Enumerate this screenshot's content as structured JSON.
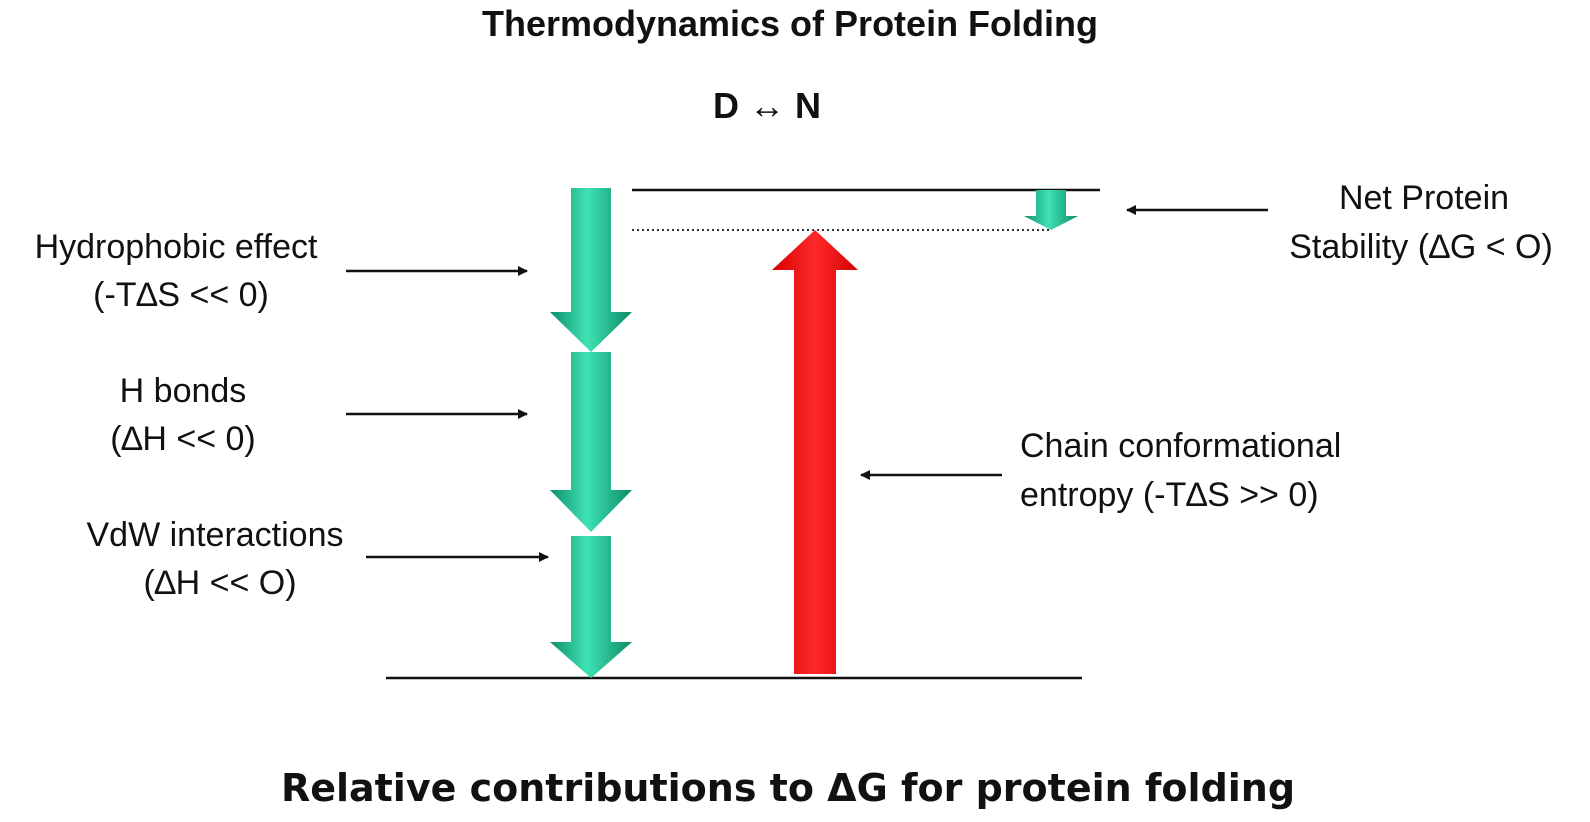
{
  "title": "Thermodynamics of Protein Folding",
  "reaction": "D ↔ N",
  "caption": "Relative contributions to ΔG for protein folding",
  "labels": {
    "hydrophobic": {
      "line1": "Hydrophobic effect",
      "line2": "(-T∆S << 0)"
    },
    "hbonds": {
      "line1": "H bonds",
      "line2": "(∆H << 0)"
    },
    "vdw": {
      "line1": "VdW interactions",
      "line2": "(∆H << O)"
    },
    "net": {
      "line1": "Net Protein",
      "line2": "Stability (∆G < O)"
    },
    "chain": {
      "line1": "Chain conformational",
      "line2": "entropy (-T∆S >> 0)"
    }
  },
  "colors": {
    "favorable_arrow": "#22c99a",
    "unfavorable_arrow": "#ff1a1a",
    "line": "#111111"
  }
}
